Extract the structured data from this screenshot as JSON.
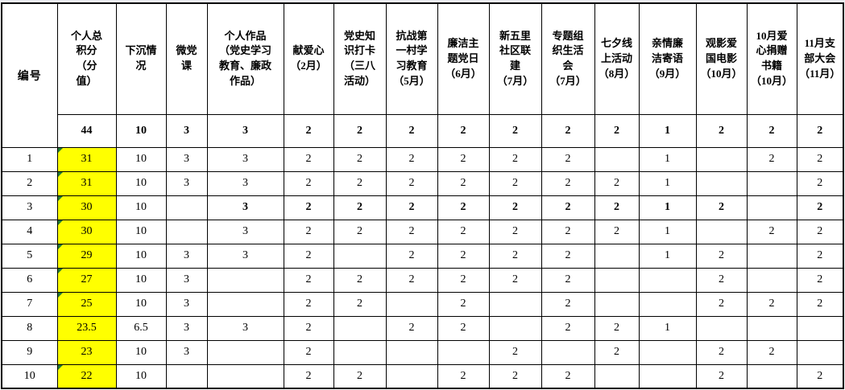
{
  "table": {
    "corner_header": "编号",
    "columns": [
      {
        "label": "个人总\n积分\n（分\n值）",
        "max": "44"
      },
      {
        "label": "下沉情\n况",
        "max": "10"
      },
      {
        "label": "微党\n课",
        "max": "3"
      },
      {
        "label": "个人作品\n（党史学习\n教育、廉政\n作品）",
        "max": "3"
      },
      {
        "label": "献爱心\n（2月）",
        "max": "2"
      },
      {
        "label": "党史知\n识打卡\n（三八\n活动）",
        "max": "2"
      },
      {
        "label": "抗战第\n一村学\n习教育\n（5月）",
        "max": "2"
      },
      {
        "label": "廉洁主\n题党日\n（6月）",
        "max": "2"
      },
      {
        "label": "新五里\n社区联\n建\n（7月）",
        "max": "2"
      },
      {
        "label": "专题组\n织生活\n会\n（7月）",
        "max": "2"
      },
      {
        "label": "七夕线\n上活动\n（8月）",
        "max": "2"
      },
      {
        "label": "亲情廉\n洁寄语\n（9月）",
        "max": "1"
      },
      {
        "label": "观影爱\n国电影\n（10月）",
        "max": "2"
      },
      {
        "label": "10月爱\n心捐赠\n书籍\n（10月）",
        "max": "2"
      },
      {
        "label": "11月支\n部大会\n（11月）",
        "max": "2"
      }
    ],
    "rows": [
      {
        "no": "1",
        "total": "31",
        "marker": true,
        "bold_from": null,
        "cells": [
          "10",
          "3",
          "3",
          "2",
          "2",
          "2",
          "2",
          "2",
          "2",
          "",
          "1",
          "",
          "2",
          "2"
        ]
      },
      {
        "no": "2",
        "total": "31",
        "marker": true,
        "bold_from": null,
        "cells": [
          "10",
          "3",
          "3",
          "2",
          "2",
          "2",
          "2",
          "2",
          "2",
          "2",
          "1",
          "",
          "",
          "2"
        ]
      },
      {
        "no": "3",
        "total": "30",
        "marker": true,
        "bold_from": 2,
        "cells": [
          "10",
          "",
          "3",
          "2",
          "2",
          "2",
          "2",
          "2",
          "2",
          "2",
          "1",
          "2",
          "",
          "2"
        ]
      },
      {
        "no": "4",
        "total": "30",
        "marker": true,
        "bold_from": null,
        "cells": [
          "10",
          "",
          "3",
          "2",
          "2",
          "2",
          "2",
          "2",
          "2",
          "2",
          "1",
          "",
          "2",
          "2"
        ]
      },
      {
        "no": "5",
        "total": "29",
        "marker": true,
        "bold_from": null,
        "cells": [
          "10",
          "3",
          "3",
          "2",
          "",
          "2",
          "2",
          "2",
          "2",
          "",
          "1",
          "2",
          "",
          "2"
        ]
      },
      {
        "no": "6",
        "total": "27",
        "marker": true,
        "bold_from": null,
        "cells": [
          "10",
          "3",
          "",
          "2",
          "2",
          "2",
          "2",
          "2",
          "2",
          "",
          "",
          "2",
          "",
          "2"
        ]
      },
      {
        "no": "7",
        "total": "25",
        "marker": true,
        "bold_from": null,
        "cells": [
          "10",
          "3",
          "",
          "2",
          "2",
          "",
          "2",
          "",
          "2",
          "",
          "",
          "2",
          "2",
          "2"
        ]
      },
      {
        "no": "8",
        "total": "23.5",
        "marker": false,
        "bold_from": null,
        "cells": [
          "6.5",
          "3",
          "3",
          "2",
          "",
          "2",
          "2",
          "",
          "2",
          "2",
          "1",
          "",
          "",
          ""
        ]
      },
      {
        "no": "9",
        "total": "23",
        "marker": false,
        "bold_from": null,
        "cells": [
          "10",
          "3",
          "",
          "2",
          "",
          "",
          "",
          "2",
          "",
          "2",
          "",
          "2",
          "2",
          ""
        ]
      },
      {
        "no": "10",
        "total": "22",
        "marker": true,
        "bold_from": null,
        "cells": [
          "10",
          "",
          "",
          "2",
          "2",
          "",
          "2",
          "2",
          "2",
          "",
          "",
          "2",
          "",
          "2"
        ]
      }
    ],
    "colors": {
      "highlight": "#FFFF00",
      "marker": "#217A36",
      "grid": "#000000"
    }
  }
}
